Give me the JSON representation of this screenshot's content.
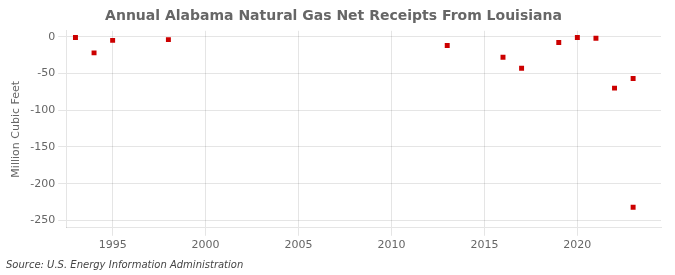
{
  "chart_data": {
    "type": "scatter",
    "title": "Annual Alabama Natural Gas Net Receipts From Louisiana",
    "ylabel": "Million Cubic Feet",
    "annotations": [
      "Source: U.S. Energy Information Administration"
    ],
    "x": [
      1993,
      1994,
      1995,
      1998,
      2013,
      2016,
      2017,
      2019,
      2020,
      2021,
      2022,
      2023,
      2023
    ],
    "values": [
      -1,
      -22,
      -5,
      -4,
      -12,
      -28,
      -43,
      -8,
      -1,
      -2,
      -70,
      -57,
      -232
    ],
    "color": "#cc0000",
    "marker": "square",
    "xlim": [
      1992.5,
      2024.5
    ],
    "xticks": [
      1995,
      2000,
      2005,
      2010,
      2015,
      2020
    ],
    "ylim": [
      -260,
      8
    ],
    "yticks": [
      0,
      -50,
      -100,
      -150,
      -200,
      -250
    ],
    "grid": true
  }
}
